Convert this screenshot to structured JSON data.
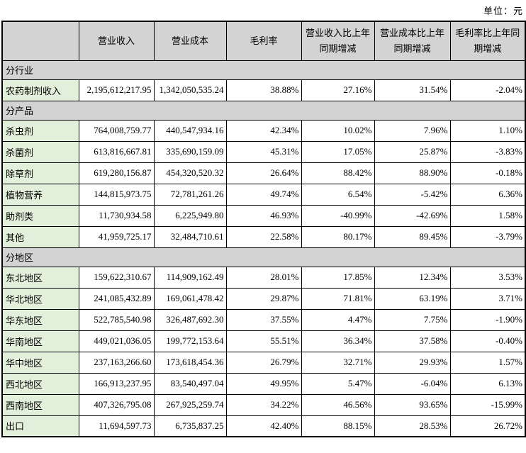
{
  "page": {
    "unit_label": "单位：元"
  },
  "table": {
    "columns": [
      "",
      "营业收入",
      "营业成本",
      "毛利率",
      "营业收入比上年同期增减",
      "营业成本比上年同期增减",
      "毛利率比上年同期增减"
    ],
    "sections": [
      {
        "title": "分行业",
        "rows": [
          {
            "label": "农药制剂收入",
            "values": [
              "2,195,612,217.95",
              "1,342,050,535.24",
              "38.88%",
              "27.16%",
              "31.54%",
              "-2.04%"
            ]
          }
        ]
      },
      {
        "title": "分产品",
        "rows": [
          {
            "label": "杀虫剂",
            "values": [
              "764,008,759.77",
              "440,547,934.16",
              "42.34%",
              "10.02%",
              "7.96%",
              "1.10%"
            ]
          },
          {
            "label": "杀菌剂",
            "values": [
              "613,816,667.81",
              "335,690,159.09",
              "45.31%",
              "17.05%",
              "25.87%",
              "-3.83%"
            ]
          },
          {
            "label": "除草剂",
            "values": [
              "619,280,156.87",
              "454,320,520.32",
              "26.64%",
              "88.42%",
              "88.90%",
              "-0.18%"
            ]
          },
          {
            "label": "植物营养",
            "values": [
              "144,815,973.75",
              "72,781,261.26",
              "49.74%",
              "6.54%",
              "-5.42%",
              "6.36%"
            ]
          },
          {
            "label": "助剂类",
            "values": [
              "11,730,934.58",
              "6,225,949.80",
              "46.93%",
              "-40.99%",
              "-42.69%",
              "1.58%"
            ]
          },
          {
            "label": "其他",
            "values": [
              "41,959,725.17",
              "32,484,710.61",
              "22.58%",
              "80.17%",
              "89.45%",
              "-3.79%"
            ]
          }
        ]
      },
      {
        "title": "分地区",
        "rows": [
          {
            "label": "东北地区",
            "values": [
              "159,622,310.67",
              "114,909,162.49",
              "28.01%",
              "17.85%",
              "12.34%",
              "3.53%"
            ]
          },
          {
            "label": "华北地区",
            "values": [
              "241,085,432.89",
              "169,061,478.42",
              "29.87%",
              "71.81%",
              "63.19%",
              "3.71%"
            ]
          },
          {
            "label": "华东地区",
            "values": [
              "522,785,540.98",
              "326,487,692.30",
              "37.55%",
              "4.47%",
              "7.75%",
              "-1.90%"
            ]
          },
          {
            "label": "华南地区",
            "values": [
              "449,021,036.05",
              "199,772,153.64",
              "55.51%",
              "36.34%",
              "37.58%",
              "-0.40%"
            ]
          },
          {
            "label": "华中地区",
            "values": [
              "237,163,266.60",
              "173,618,454.36",
              "26.79%",
              "32.71%",
              "29.93%",
              "1.57%"
            ]
          },
          {
            "label": "西北地区",
            "values": [
              "166,913,237.95",
              "83,540,497.04",
              "49.95%",
              "5.47%",
              "-6.04%",
              "6.13%"
            ]
          },
          {
            "label": "西南地区",
            "values": [
              "407,326,795.08",
              "267,925,259.74",
              "34.22%",
              "46.56%",
              "93.65%",
              "-15.99%"
            ]
          },
          {
            "label": "出口",
            "values": [
              "11,694,597.73",
              "6,735,837.25",
              "42.40%",
              "88.15%",
              "28.53%",
              "26.72%"
            ]
          }
        ]
      }
    ],
    "colors": {
      "header_bg": "#d3d3d3",
      "section_bg": "#d3d3d3",
      "label_bg": "#e2efda",
      "border": "#000000"
    }
  }
}
